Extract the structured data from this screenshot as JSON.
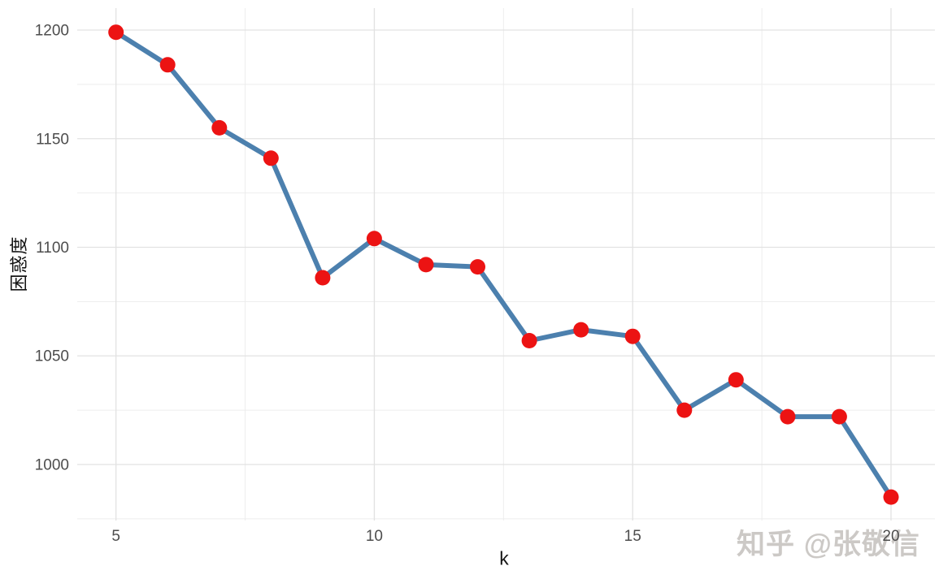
{
  "watermark": {
    "text": "知乎 @张敬信",
    "color": "#c8c5c2"
  },
  "chart_data": {
    "type": "line",
    "title": "",
    "xlabel": "k",
    "ylabel": "困惑度",
    "x": [
      5,
      6,
      7,
      8,
      9,
      10,
      11,
      12,
      13,
      14,
      15,
      16,
      17,
      18,
      19,
      20
    ],
    "y": [
      1199,
      1184,
      1155,
      1141,
      1086,
      1104,
      1092,
      1091,
      1057,
      1062,
      1059,
      1025,
      1039,
      1022,
      1022,
      985
    ],
    "series_name": "perplexity",
    "x_ticks": [
      5,
      10,
      15,
      20
    ],
    "y_ticks": [
      1000,
      1050,
      1100,
      1150,
      1200
    ],
    "x_minor_gridlines": [
      7.5,
      12.5,
      17.5
    ],
    "y_minor_gridlines": [
      975,
      1025,
      1075,
      1125,
      1175
    ],
    "xlim": [
      4.25,
      20.85
    ],
    "ylim": [
      974.2,
      1210.1
    ],
    "grid": "on",
    "legend": "none",
    "marker": "circle",
    "colors": {
      "line": "#4c80ae",
      "point": "#ec1313",
      "grid_major": "#e2e2e2",
      "grid_minor": "#ededed",
      "tick_label": "#4d4d4d",
      "axis_title": "#141414",
      "background": "#ffffff"
    }
  }
}
